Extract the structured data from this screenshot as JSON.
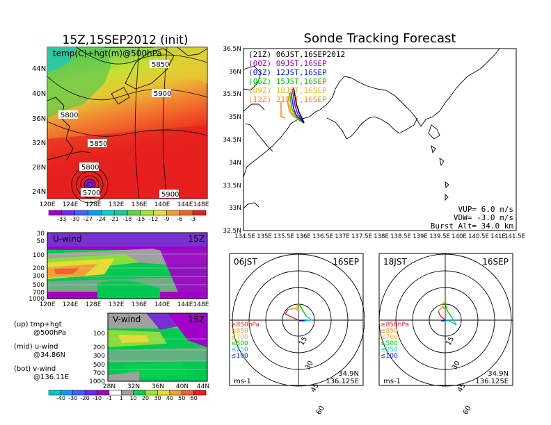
{
  "top_left": {
    "title": "15Z,15SEP2012 (init)",
    "panel_label": "temp(C)+hgt(m)@500hPa",
    "lat_labels": [
      "44N",
      "40N",
      "36N",
      "32N",
      "28N",
      "24N"
    ],
    "lon_labels": [
      "120E",
      "124E",
      "128E",
      "132E",
      "136E",
      "140E",
      "144E",
      "148E"
    ],
    "contour_labels": [
      "5850",
      "5900",
      "5800",
      "5850",
      "5800",
      "5700",
      "5900"
    ],
    "colorbar_labels": [
      "-33",
      "-30",
      "-27",
      "-24",
      "-21",
      "-18",
      "-15",
      "-12",
      "-9",
      "-6",
      "-3"
    ],
    "colorbar_colors": [
      "#a000c8",
      "#6e28ff",
      "#3c64ff",
      "#00a0ff",
      "#00d2d2",
      "#00d296",
      "#5ad250",
      "#a0e632",
      "#e6dc32",
      "#f0a032",
      "#f06428",
      "#e61e1e"
    ]
  },
  "uwind": {
    "label": "U-wind",
    "time": "15Z",
    "levels": [
      "30",
      "50",
      "100",
      "200",
      "300",
      "500",
      "700",
      "1000"
    ],
    "lon_labels": [
      "120E",
      "124E",
      "128E",
      "132E",
      "136E",
      "140E",
      "144E",
      "148E"
    ]
  },
  "vwind": {
    "label": "V-wind",
    "time": "15Z",
    "levels": [
      "100",
      "200",
      "300",
      "500",
      "700",
      "1000"
    ],
    "lat_labels": [
      "28N",
      "32N",
      "36N",
      "40N",
      "44N"
    ],
    "colorbar_labels": [
      "-40",
      "-30",
      "-20",
      "-10",
      "-1",
      "1",
      "10",
      "20",
      "30",
      "40",
      "50",
      "60"
    ],
    "colorbar_colors": [
      "#00c8c8",
      "#00a0ff",
      "#3c64ff",
      "#6e28ff",
      "#a000c8",
      "#ffffff",
      "#a0a0a0",
      "#00d250",
      "#a0e632",
      "#e6dc32",
      "#f0a032",
      "#f06428",
      "#e61e1e"
    ]
  },
  "legend_text": {
    "up": "(up)  tmp+hgt",
    "up_sub": "@500hPa",
    "mid": "(mid)  u-wind",
    "mid_sub": "@34.86N",
    "bot": "(bot)  v-wind",
    "bot_sub": "@136.11E"
  },
  "main_map": {
    "title": "Sonde Tracking Forecast",
    "legend": [
      {
        "text": "(21Z)  06JST,16SEP2012",
        "color": "#000000"
      },
      {
        "text": "(00Z)  09JST,16SEP",
        "color": "#a000c8"
      },
      {
        "text": "(03Z)  12JST,16SEP",
        "color": "#0028ff"
      },
      {
        "text": "(06Z)  15JST,16SEP",
        "color": "#00c800"
      },
      {
        "text": "(09Z)  18JST,16SEP",
        "color": "#e6b432"
      },
      {
        "text": "(12Z)  21JST,16SEP",
        "color": "#f08c28"
      }
    ],
    "lat_labels": [
      "36.5N",
      "36N",
      "35.5N",
      "35N",
      "34.5N",
      "34N",
      "33.5N",
      "33N",
      "32.5N"
    ],
    "lon_labels": [
      "134.5E",
      "135E",
      "135.5E",
      "136E",
      "136.5E",
      "137E",
      "137.5E",
      "138E",
      "138.5E",
      "139E",
      "139.5E",
      "140E",
      "140.5E",
      "141E",
      "141.5E"
    ],
    "params": [
      "VUP= 6.0 m/s",
      "VDW= -3.0 m/s",
      "Burst Alt= 34.0 km"
    ]
  },
  "hodographs": [
    {
      "time": "06JST",
      "date": "16SEP",
      "ring_labels": [
        "15",
        "30",
        "45",
        "60"
      ],
      "unit": "ms-1",
      "lat": "34.9N",
      "lon": "136.125E"
    },
    {
      "time": "18JST",
      "date": "16SEP",
      "ring_labels": [
        "15",
        "30",
        "45",
        "60"
      ],
      "unit": "ms-1",
      "lat": "34.9N",
      "lon": "136.125E"
    }
  ],
  "hodo_legend": [
    {
      "text": "≥850hPa",
      "color": "#e61e1e"
    },
    {
      "text": "≤850",
      "color": "#f08c28"
    },
    {
      "text": "≤700",
      "color": "#e6b432"
    },
    {
      "text": "≤500",
      "color": "#00c800"
    },
    {
      "text": "≤250",
      "color": "#00c8c8"
    },
    {
      "text": "≤100",
      "color": "#0028ff"
    }
  ]
}
